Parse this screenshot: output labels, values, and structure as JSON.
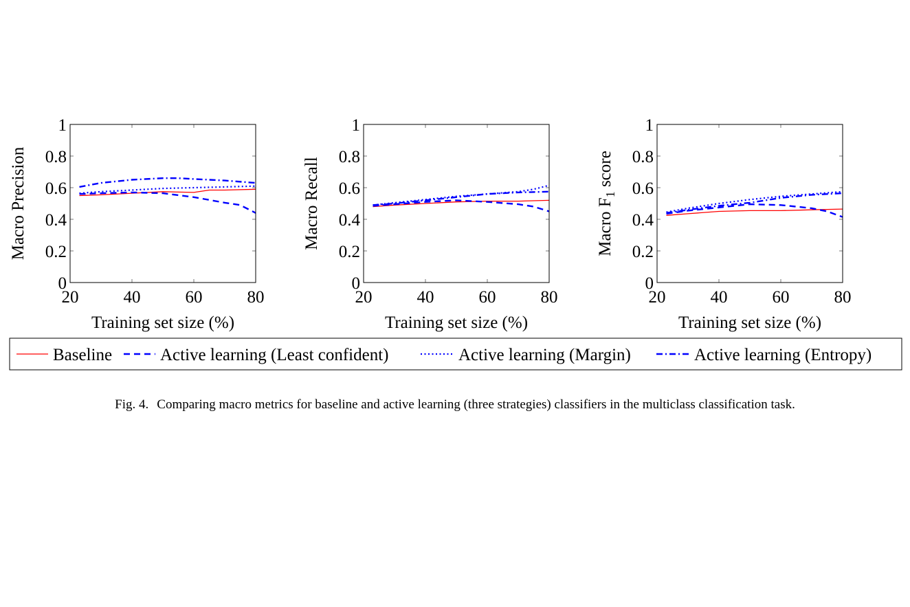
{
  "chart_data": [
    {
      "type": "line",
      "ylabel": "Macro Precision",
      "xlabel": "Training set size (%)",
      "xlim": [
        20,
        80
      ],
      "ylim": [
        0,
        1
      ],
      "xticks": [
        "20",
        "40",
        "60",
        "80"
      ],
      "yticks": [
        "0",
        "0.2",
        "0.4",
        "0.6",
        "0.8",
        "1"
      ],
      "grid": false,
      "series": [
        {
          "name": "Baseline",
          "x": [
            23,
            30,
            40,
            50,
            60,
            65,
            70,
            80
          ],
          "y": [
            0.55,
            0.555,
            0.565,
            0.575,
            0.57,
            0.585,
            0.585,
            0.59
          ]
        },
        {
          "name": "Active learning (Least confident)",
          "x": [
            23,
            30,
            40,
            50,
            60,
            70,
            75,
            80
          ],
          "y": [
            0.56,
            0.565,
            0.57,
            0.565,
            0.54,
            0.505,
            0.49,
            0.44
          ]
        },
        {
          "name": "Active learning (Margin)",
          "x": [
            23,
            30,
            40,
            50,
            60,
            70,
            80
          ],
          "y": [
            0.565,
            0.575,
            0.585,
            0.595,
            0.6,
            0.605,
            0.61
          ]
        },
        {
          "name": "Active learning (Entropy)",
          "x": [
            23,
            30,
            40,
            50,
            55,
            60,
            70,
            80
          ],
          "y": [
            0.605,
            0.63,
            0.65,
            0.66,
            0.66,
            0.655,
            0.645,
            0.63
          ]
        }
      ]
    },
    {
      "type": "line",
      "ylabel": "Macro Recall",
      "xlabel": "Training set size (%)",
      "xlim": [
        20,
        80
      ],
      "ylim": [
        0,
        1
      ],
      "xticks": [
        "20",
        "40",
        "60",
        "80"
      ],
      "yticks": [
        "0",
        "0.2",
        "0.4",
        "0.6",
        "0.8",
        "1"
      ],
      "grid": false,
      "series": [
        {
          "name": "Baseline",
          "x": [
            23,
            30,
            40,
            50,
            60,
            70,
            80
          ],
          "y": [
            0.48,
            0.49,
            0.5,
            0.51,
            0.515,
            0.515,
            0.52
          ]
        },
        {
          "name": "Active learning (Least confident)",
          "x": [
            23,
            30,
            40,
            50,
            60,
            70,
            75,
            80
          ],
          "y": [
            0.485,
            0.495,
            0.51,
            0.52,
            0.51,
            0.495,
            0.48,
            0.45
          ]
        },
        {
          "name": "Active learning (Margin)",
          "x": [
            23,
            30,
            40,
            50,
            60,
            70,
            75,
            80
          ],
          "y": [
            0.49,
            0.505,
            0.525,
            0.545,
            0.56,
            0.575,
            0.59,
            0.615
          ]
        },
        {
          "name": "Active learning (Entropy)",
          "x": [
            23,
            30,
            40,
            50,
            60,
            70,
            80
          ],
          "y": [
            0.49,
            0.5,
            0.52,
            0.54,
            0.56,
            0.57,
            0.575
          ]
        }
      ]
    },
    {
      "type": "line",
      "ylabel_prefix": "Macro F",
      "ylabel_subscript": "1",
      "ylabel_suffix": " score",
      "xlabel": "Training set size (%)",
      "xlim": [
        20,
        80
      ],
      "ylim": [
        0,
        1
      ],
      "xticks": [
        "20",
        "40",
        "60",
        "80"
      ],
      "yticks": [
        "0",
        "0.2",
        "0.4",
        "0.6",
        "0.8",
        "1"
      ],
      "grid": false,
      "series": [
        {
          "name": "Baseline",
          "x": [
            23,
            30,
            40,
            50,
            60,
            70,
            80
          ],
          "y": [
            0.425,
            0.435,
            0.45,
            0.455,
            0.455,
            0.46,
            0.465
          ]
        },
        {
          "name": "Active learning (Least confident)",
          "x": [
            23,
            30,
            40,
            50,
            60,
            70,
            75,
            80
          ],
          "y": [
            0.435,
            0.455,
            0.475,
            0.495,
            0.49,
            0.47,
            0.45,
            0.415
          ]
        },
        {
          "name": "Active learning (Margin)",
          "x": [
            23,
            30,
            40,
            50,
            60,
            70,
            80
          ],
          "y": [
            0.445,
            0.47,
            0.5,
            0.525,
            0.545,
            0.56,
            0.575
          ]
        },
        {
          "name": "Active learning (Entropy)",
          "x": [
            23,
            30,
            40,
            50,
            60,
            70,
            80
          ],
          "y": [
            0.44,
            0.46,
            0.485,
            0.505,
            0.535,
            0.555,
            0.565
          ]
        }
      ]
    }
  ],
  "legend": {
    "placement": "bottom",
    "entries": [
      {
        "label": "Baseline",
        "color": "#ff0000",
        "dash": "solid"
      },
      {
        "label": "Active learning (Least confident)",
        "color": "#0000ff",
        "dash": "dashed"
      },
      {
        "label": "Active learning (Margin)",
        "color": "#0000ff",
        "dash": "dotted"
      },
      {
        "label": "Active learning (Entropy)",
        "color": "#0000ff",
        "dash": "dashdot"
      }
    ]
  },
  "caption": {
    "label": "Fig. 4.",
    "text": "Comparing macro metrics for baseline and active learning (three strategies) classifiers in the multiclass classification task."
  }
}
